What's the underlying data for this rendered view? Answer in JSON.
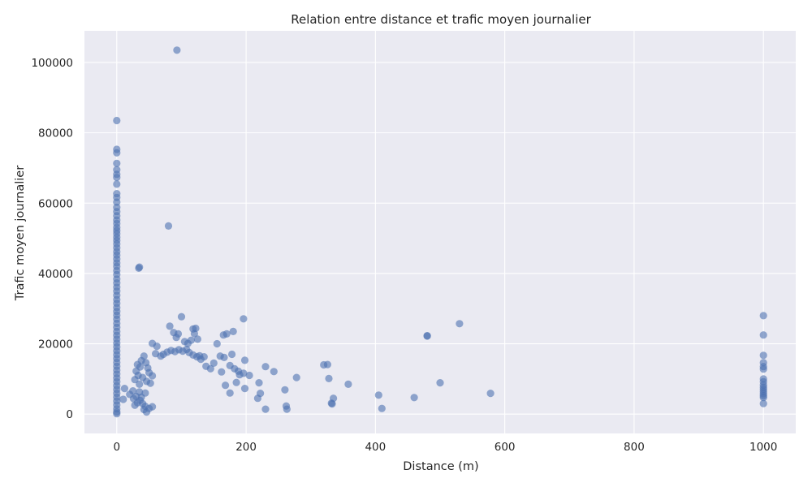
{
  "chart_data": {
    "type": "scatter",
    "title": "Relation entre distance et trafic moyen journalier",
    "xlabel": "Distance (m)",
    "ylabel": "Trafic moyen journalier",
    "xlim": [
      -50,
      1050
    ],
    "ylim": [
      -5500,
      109000
    ],
    "xticks": [
      0,
      200,
      400,
      600,
      800,
      1000
    ],
    "yticks": [
      0,
      20000,
      40000,
      60000,
      80000,
      100000
    ],
    "xtick_labels": [
      "0",
      "200",
      "400",
      "600",
      "800",
      "1000"
    ],
    "ytick_labels": [
      "0",
      "20000",
      "40000",
      "60000",
      "80000",
      "100000"
    ],
    "grid": true,
    "background": "#eaeaf2",
    "point_color": "#4c72b0",
    "series": [
      {
        "points": [
          [
            0,
            83500
          ],
          [
            0,
            75300
          ],
          [
            0,
            74300
          ],
          [
            0,
            71300
          ],
          [
            0,
            69500
          ],
          [
            0,
            68200
          ],
          [
            0,
            67300
          ],
          [
            0,
            65400
          ],
          [
            0,
            62700
          ],
          [
            0,
            61600
          ],
          [
            0,
            60300
          ],
          [
            0,
            58800
          ],
          [
            0,
            57600
          ],
          [
            0,
            56400
          ],
          [
            0,
            55200
          ],
          [
            0,
            54200
          ],
          [
            0,
            53100
          ],
          [
            0,
            52200
          ],
          [
            0,
            51300
          ],
          [
            0,
            50300
          ],
          [
            0,
            49400
          ],
          [
            0,
            48400
          ],
          [
            0,
            47300
          ],
          [
            0,
            46200
          ],
          [
            0,
            45200
          ],
          [
            0,
            44100
          ],
          [
            0,
            43000
          ],
          [
            0,
            42000
          ],
          [
            0,
            40800
          ],
          [
            0,
            39700
          ],
          [
            0,
            38400
          ],
          [
            0,
            37300
          ],
          [
            0,
            36100
          ],
          [
            0,
            35000
          ],
          [
            0,
            33800
          ],
          [
            0,
            32600
          ],
          [
            0,
            31500
          ],
          [
            0,
            30300
          ],
          [
            0,
            29200
          ],
          [
            0,
            28100
          ],
          [
            0,
            27000
          ],
          [
            0,
            25800
          ],
          [
            0,
            24700
          ],
          [
            0,
            23500
          ],
          [
            0,
            22400
          ],
          [
            0,
            21300
          ],
          [
            0,
            20200
          ],
          [
            0,
            19100
          ],
          [
            0,
            18000
          ],
          [
            0,
            16900
          ],
          [
            0,
            15800
          ],
          [
            0,
            14700
          ],
          [
            0,
            13600
          ],
          [
            0,
            12500
          ],
          [
            0,
            11400
          ],
          [
            0,
            10300
          ],
          [
            0,
            9200
          ],
          [
            0,
            8100
          ],
          [
            0,
            7000
          ],
          [
            0,
            5900
          ],
          [
            0,
            4800
          ],
          [
            0,
            3700
          ],
          [
            0,
            2600
          ],
          [
            0,
            1500
          ],
          [
            0,
            600
          ],
          [
            0,
            100
          ],
          [
            93,
            103500
          ],
          [
            80,
            53500
          ],
          [
            34,
            41500
          ],
          [
            35,
            41800
          ],
          [
            100,
            27700
          ],
          [
            82,
            25000
          ],
          [
            88,
            23200
          ],
          [
            95,
            22800
          ],
          [
            92,
            21800
          ],
          [
            118,
            24200
          ],
          [
            122,
            24400
          ],
          [
            120,
            22900
          ],
          [
            115,
            21000
          ],
          [
            125,
            21300
          ],
          [
            105,
            20600
          ],
          [
            110,
            20100
          ],
          [
            55,
            20100
          ],
          [
            62,
            19300
          ],
          [
            196,
            27100
          ],
          [
            180,
            23500
          ],
          [
            165,
            22500
          ],
          [
            170,
            22800
          ],
          [
            155,
            20000
          ],
          [
            150,
            14500
          ],
          [
            160,
            16500
          ],
          [
            166,
            16100
          ],
          [
            128,
            16600
          ],
          [
            135,
            16300
          ],
          [
            138,
            13600
          ],
          [
            145,
            12900
          ],
          [
            175,
            13800
          ],
          [
            182,
            12900
          ],
          [
            178,
            17000
          ],
          [
            188,
            12200
          ],
          [
            190,
            11200
          ],
          [
            196,
            11600
          ],
          [
            198,
            15300
          ],
          [
            205,
            11000
          ],
          [
            220,
            8900
          ],
          [
            230,
            13500
          ],
          [
            243,
            12100
          ],
          [
            260,
            6900
          ],
          [
            262,
            2300
          ],
          [
            263,
            1400
          ],
          [
            230,
            1400
          ],
          [
            218,
            4500
          ],
          [
            222,
            5900
          ],
          [
            198,
            7300
          ],
          [
            185,
            9000
          ],
          [
            175,
            6000
          ],
          [
            168,
            8200
          ],
          [
            162,
            12000
          ],
          [
            42,
            16500
          ],
          [
            38,
            15200
          ],
          [
            45,
            14600
          ],
          [
            32,
            14100
          ],
          [
            36,
            13400
          ],
          [
            48,
            13100
          ],
          [
            30,
            12200
          ],
          [
            50,
            11800
          ],
          [
            33,
            11000
          ],
          [
            40,
            10400
          ],
          [
            55,
            10900
          ],
          [
            28,
            9800
          ],
          [
            46,
            9300
          ],
          [
            35,
            8500
          ],
          [
            52,
            8800
          ],
          [
            12,
            7300
          ],
          [
            25,
            6600
          ],
          [
            35,
            6300
          ],
          [
            44,
            6000
          ],
          [
            20,
            5600
          ],
          [
            30,
            5000
          ],
          [
            38,
            4800
          ],
          [
            10,
            4200
          ],
          [
            26,
            4400
          ],
          [
            36,
            3900
          ],
          [
            32,
            3200
          ],
          [
            40,
            3000
          ],
          [
            28,
            2500
          ],
          [
            44,
            2200
          ],
          [
            42,
            1300
          ],
          [
            46,
            600
          ],
          [
            50,
            1600
          ],
          [
            55,
            2100
          ],
          [
            60,
            17200
          ],
          [
            68,
            16500
          ],
          [
            72,
            17000
          ],
          [
            78,
            17600
          ],
          [
            84,
            18100
          ],
          [
            90,
            17800
          ],
          [
            96,
            18300
          ],
          [
            102,
            17900
          ],
          [
            108,
            18400
          ],
          [
            112,
            17500
          ],
          [
            118,
            16800
          ],
          [
            124,
            16300
          ],
          [
            130,
            15600
          ],
          [
            320,
            14000
          ],
          [
            326,
            14100
          ],
          [
            328,
            10100
          ],
          [
            278,
            10400
          ],
          [
            358,
            8500
          ],
          [
            335,
            4500
          ],
          [
            332,
            3100
          ],
          [
            333,
            2900
          ],
          [
            405,
            5400
          ],
          [
            410,
            1600
          ],
          [
            480,
            22300
          ],
          [
            480,
            22200
          ],
          [
            530,
            25700
          ],
          [
            500,
            8900
          ],
          [
            460,
            4700
          ],
          [
            578,
            5900
          ],
          [
            1000,
            28000
          ],
          [
            1000,
            22500
          ],
          [
            1000,
            16700
          ],
          [
            1000,
            14600
          ],
          [
            1000,
            13500
          ],
          [
            1000,
            12800
          ],
          [
            1000,
            10000
          ],
          [
            1000,
            9200
          ],
          [
            1000,
            8300
          ],
          [
            1000,
            7600
          ],
          [
            1000,
            7000
          ],
          [
            1000,
            6400
          ],
          [
            1000,
            5800
          ],
          [
            1000,
            5200
          ],
          [
            1000,
            4700
          ],
          [
            1000,
            3000
          ]
        ]
      }
    ]
  }
}
